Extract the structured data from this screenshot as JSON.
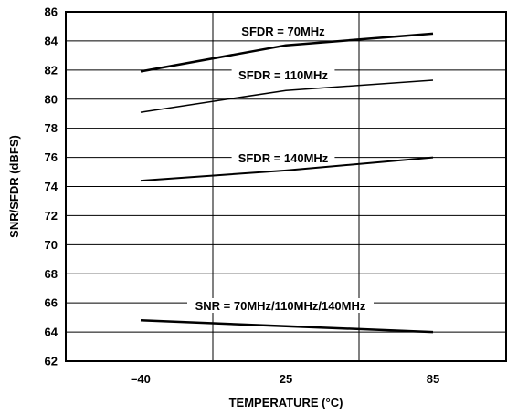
{
  "chart_data": {
    "type": "line",
    "xlabel": "TEMPERATURE (°C)",
    "ylabel": "SNR/SFDR (dBFS)",
    "ylim": [
      62,
      86
    ],
    "yticks": [
      "62",
      "64",
      "66",
      "68",
      "70",
      "72",
      "74",
      "76",
      "78",
      "80",
      "82",
      "84",
      "86"
    ],
    "categories": [
      "–40",
      "25",
      "85"
    ],
    "x": [
      -40,
      25,
      85
    ],
    "grid": true,
    "series": [
      {
        "name": "SFDR = 70MHz",
        "values": [
          81.9,
          83.7,
          84.5
        ],
        "stroke": 2.5
      },
      {
        "name": "SFDR = 110MHz",
        "values": [
          79.1,
          80.6,
          81.3
        ],
        "stroke": 1.5
      },
      {
        "name": "SFDR = 140MHz",
        "values": [
          74.4,
          75.1,
          76.0
        ],
        "stroke": 2.0
      },
      {
        "name": "SNR = 70MHz/110MHz/140MHz",
        "values": [
          64.8,
          64.4,
          64.0
        ],
        "stroke": 2.5
      }
    ],
    "colors": {
      "line": "#000000",
      "grid": "#000000",
      "background": "#ffffff"
    }
  }
}
